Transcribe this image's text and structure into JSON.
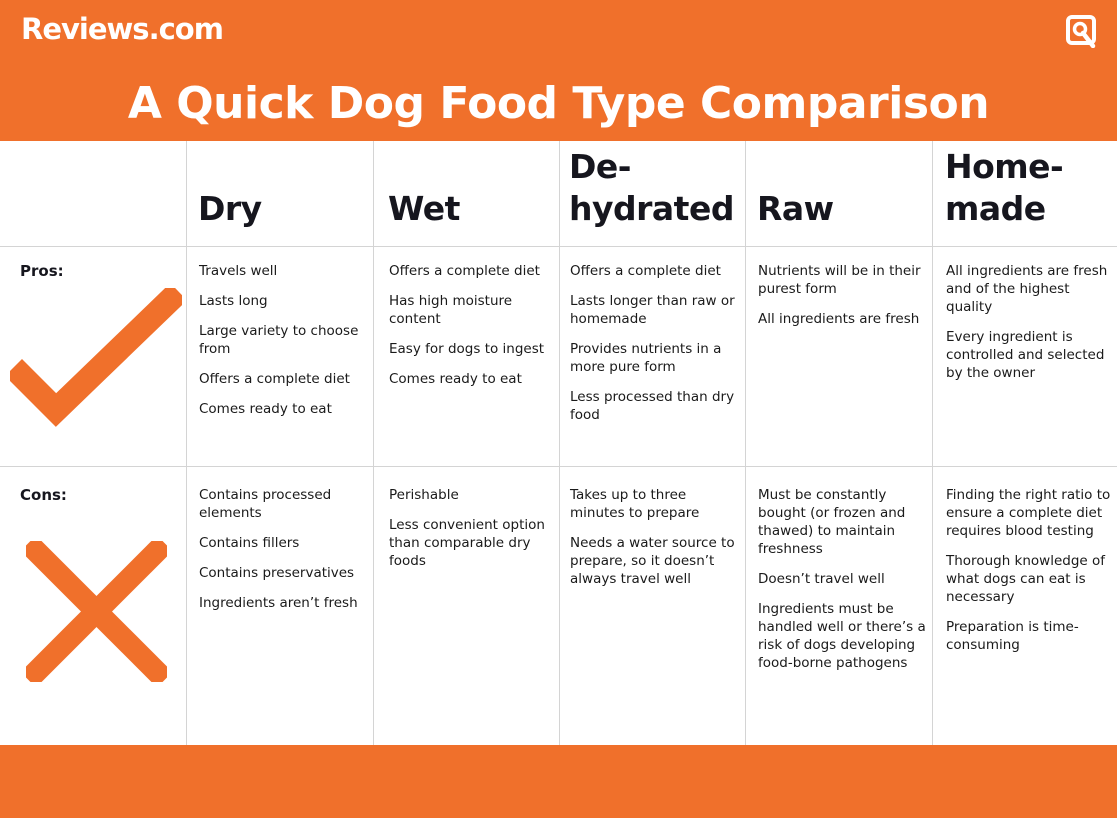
{
  "header": {
    "brand": "Reviews.com",
    "logo_icon": "reviews-r-logo-icon",
    "title": "A Quick Dog Food Type Comparison"
  },
  "colors": {
    "accent": "#f0702b",
    "text": "#16161e",
    "grid": "#d4d4d4"
  },
  "table": {
    "columns": [
      {
        "lines": [
          "Dry"
        ]
      },
      {
        "lines": [
          "Wet"
        ]
      },
      {
        "lines": [
          "De-",
          "hydrated"
        ]
      },
      {
        "lines": [
          "Raw"
        ]
      },
      {
        "lines": [
          "Home-",
          "made"
        ]
      }
    ],
    "rows": [
      {
        "label": "Pros:",
        "icon": "checkmark-icon",
        "cells": [
          [
            "Travels well",
            "Lasts long",
            "Large variety to choose from",
            "Offers a complete diet",
            "Comes ready to eat"
          ],
          [
            "Offers a complete diet",
            "Has high moisture content",
            "Easy for dogs to ingest",
            "Comes ready to eat"
          ],
          [
            "Offers a complete diet",
            "Lasts longer than raw or homemade",
            "Provides nutrients in a more pure form",
            "Less processed than dry food"
          ],
          [
            "Nutrients will be in their purest form",
            "All ingredients are fresh"
          ],
          [
            "All ingredients are fresh and of the highest quality",
            "Every ingredient is controlled and selected by the owner"
          ]
        ]
      },
      {
        "label": "Cons:",
        "icon": "x-cross-icon",
        "cells": [
          [
            "Contains processed elements",
            "Contains fillers",
            "Contains preservatives",
            "Ingredients aren’t fresh"
          ],
          [
            "Perishable",
            "Less convenient option than comparable dry foods"
          ],
          [
            "Takes up to three minutes to prepare",
            "Needs a water source to prepare, so it doesn’t always travel well"
          ],
          [
            "Must be constantly bought (or frozen and thawed) to maintain freshness",
            "Doesn’t travel well",
            "Ingredients must be handled well or there’s a risk of dogs developing food-borne pathogens"
          ],
          [
            "Finding the right ratio to ensure a complete diet requires blood testing",
            "Thorough knowledge of what dogs can eat is necessary",
            "Preparation is time-consuming"
          ]
        ]
      }
    ]
  }
}
